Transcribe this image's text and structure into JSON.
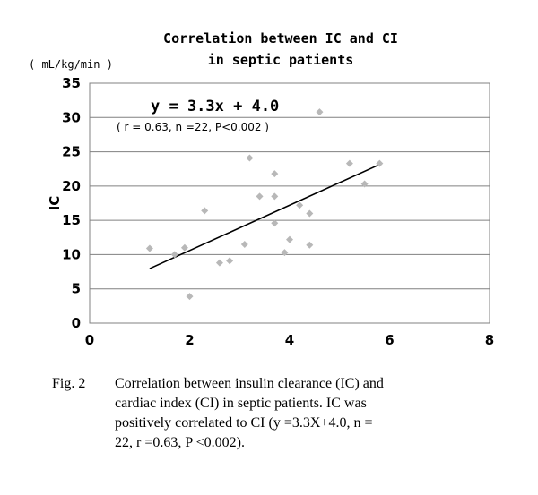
{
  "chart_data": {
    "type": "scatter",
    "title": "Correlation between IC and CI",
    "subtitle": "in septic patients",
    "unit_label": "( mL/kg/min )",
    "ylabel": "IC",
    "xlabel": "",
    "xlim": [
      0,
      8
    ],
    "ylim": [
      0,
      35
    ],
    "x_ticks": [
      "0",
      "2",
      "4",
      "6",
      "8"
    ],
    "y_ticks": [
      "0",
      "5",
      "10",
      "15",
      "20",
      "25",
      "30",
      "35"
    ],
    "grid": true,
    "marker_color": "#b8b8b8",
    "line_color": "#000000",
    "points": [
      {
        "x": 1.2,
        "y": 10.9
      },
      {
        "x": 1.7,
        "y": 10.0
      },
      {
        "x": 1.9,
        "y": 11.0
      },
      {
        "x": 2.0,
        "y": 3.9
      },
      {
        "x": 2.3,
        "y": 16.4
      },
      {
        "x": 2.6,
        "y": 8.8
      },
      {
        "x": 2.8,
        "y": 9.1
      },
      {
        "x": 3.1,
        "y": 11.5
      },
      {
        "x": 3.2,
        "y": 24.1
      },
      {
        "x": 3.4,
        "y": 18.5
      },
      {
        "x": 3.7,
        "y": 21.8
      },
      {
        "x": 3.7,
        "y": 18.5
      },
      {
        "x": 3.7,
        "y": 14.6
      },
      {
        "x": 3.9,
        "y": 10.3
      },
      {
        "x": 4.0,
        "y": 12.2
      },
      {
        "x": 4.2,
        "y": 17.2
      },
      {
        "x": 4.4,
        "y": 16.0
      },
      {
        "x": 4.4,
        "y": 11.4
      },
      {
        "x": 4.6,
        "y": 30.8
      },
      {
        "x": 5.2,
        "y": 23.3
      },
      {
        "x": 5.5,
        "y": 20.3
      },
      {
        "x": 5.8,
        "y": 23.3
      }
    ],
    "regression": {
      "slope": 3.3,
      "intercept": 4.0,
      "x_range": [
        1.2,
        5.8
      ],
      "equation": "y = 3.3x + 4.0",
      "stats": "( r = 0.63, n =22, P<0.002 )"
    }
  },
  "caption": {
    "lead": "Fig. 2",
    "lines": [
      "Correlation between insulin clearance (IC) and",
      "cardiac index (CI) in septic patients. IC was",
      "positively correlated to CI (y =3.3X+4.0, n =",
      "22, r =0.63, P <0.002)."
    ]
  }
}
